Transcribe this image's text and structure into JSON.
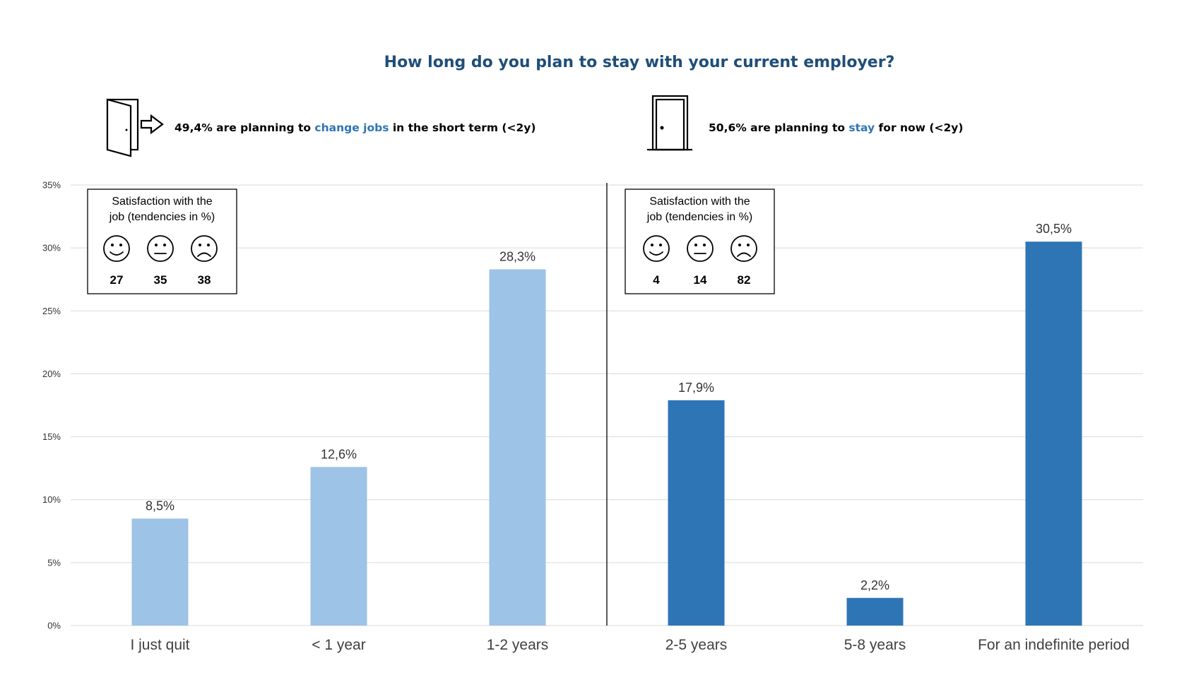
{
  "colors": {
    "leave": "#9DC3E6",
    "stay": "#2E75B6",
    "title": "#1F4E79",
    "accent_text": "#2E75B6",
    "grid": "#D9D9D9"
  },
  "icons": {
    "leave": "door-exit-arrow-icon",
    "stay": "closed-door-icon",
    "faces": [
      "smiley-face-icon",
      "neutral-face-icon",
      "sad-face-icon"
    ]
  },
  "headers": {
    "leave": {
      "pre": "49,4% are planning to ",
      "accent": "change jobs",
      "post": " in the short term (<2y)"
    },
    "stay": {
      "pre": "50,6% are planning to ",
      "accent": "stay",
      "post": " for now (<2y)"
    }
  },
  "satisfaction": [
    {
      "line1": "Satisfaction with the",
      "line2": "job (tendencies in %)",
      "values": [
        "27",
        "35",
        "38"
      ]
    },
    {
      "line1": "Satisfaction with the",
      "line2": "job (tendencies in %)",
      "values": [
        "4",
        "14",
        "82"
      ]
    }
  ],
  "chart_data": {
    "type": "bar",
    "title": "How long do you plan to stay with your current employer?",
    "categories": [
      "I just quit",
      "< 1 year",
      "1-2 years",
      "2-5 years",
      "5-8 years",
      "For an indefinite period"
    ],
    "values": [
      8.5,
      12.6,
      28.3,
      17.9,
      2.2,
      30.5
    ],
    "data_labels": [
      "8,5%",
      "12,6%",
      "28,3%",
      "17,9%",
      "2,2%",
      "30,5%"
    ],
    "groups": [
      "leave",
      "leave",
      "leave",
      "stay",
      "stay",
      "stay"
    ],
    "yticks": [
      "0%",
      "5%",
      "10%",
      "15%",
      "20%",
      "25%",
      "30%",
      "35%"
    ],
    "ylim": [
      0,
      35
    ],
    "grid": true,
    "divider_after_category": 3
  }
}
